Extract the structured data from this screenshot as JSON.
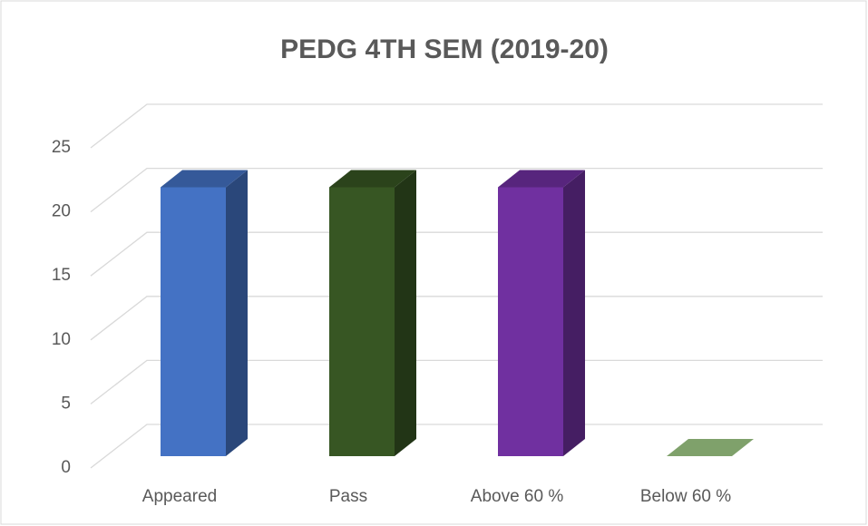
{
  "chart_data": {
    "type": "bar3d",
    "title": "PEDG 4TH SEM (2019-20)",
    "categories": [
      "Appeared",
      "Pass",
      "Above 60 %",
      "Below 60 %"
    ],
    "values": [
      21,
      21,
      21,
      0
    ],
    "colors": [
      "#4472c4",
      "#375623",
      "#7030a0",
      "#7fa16b"
    ],
    "ylim": [
      0,
      25
    ],
    "yticks": [
      0,
      5,
      10,
      15,
      20,
      25
    ],
    "grid": true
  }
}
